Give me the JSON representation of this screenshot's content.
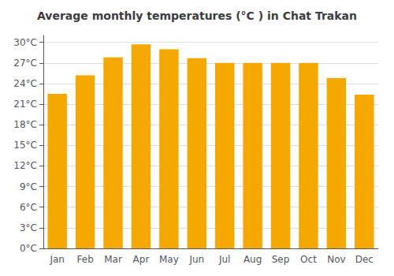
{
  "chart_data": {
    "type": "bar",
    "title": "Average monthly temperatures (°C ) in Chat Trakan",
    "categories": [
      "Jan",
      "Feb",
      "Mar",
      "Apr",
      "May",
      "Jun",
      "Jul",
      "Aug",
      "Sep",
      "Oct",
      "Nov",
      "Dec"
    ],
    "values": [
      22.5,
      25.2,
      27.8,
      29.7,
      29.0,
      27.7,
      27.0,
      27.0,
      27.0,
      27.0,
      24.8,
      22.4
    ],
    "color": "#F5A800",
    "ylim": [
      0,
      31
    ],
    "yticks": [
      {
        "value": 0,
        "label": "0°C"
      },
      {
        "value": 3,
        "label": "3°C"
      },
      {
        "value": 6,
        "label": "6°C"
      },
      {
        "value": 9,
        "label": "9°C"
      },
      {
        "value": 12,
        "label": "12°C"
      },
      {
        "value": 15,
        "label": "15°C"
      },
      {
        "value": 18,
        "label": "18°C"
      },
      {
        "value": 21,
        "label": "21°C"
      },
      {
        "value": 24,
        "label": "24°C"
      },
      {
        "value": 27,
        "label": "27°C"
      },
      {
        "value": 30,
        "label": "30°C"
      }
    ],
    "grid": true
  }
}
